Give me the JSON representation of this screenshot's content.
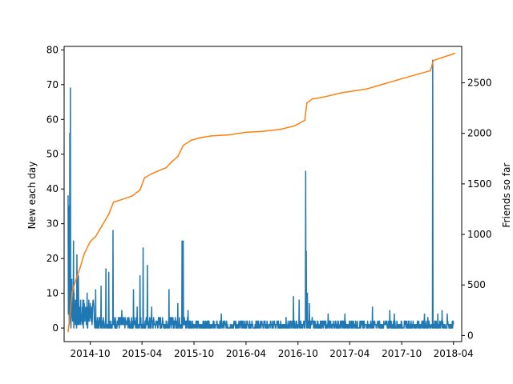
{
  "chart_data": {
    "type": "line",
    "title": "",
    "xlabel": "",
    "ylabel_left": "New each day",
    "ylabel_right": "Friends so far",
    "x_ticks": [
      "2014-10",
      "2015-04",
      "2015-10",
      "2016-04",
      "2016-10",
      "2017-04",
      "2017-10",
      "2018-04"
    ],
    "y_left_ticks": [
      "0",
      "10",
      "20",
      "30",
      "40",
      "50",
      "60",
      "70",
      "80"
    ],
    "y_right_ticks": [
      "0",
      "500",
      "1000",
      "1500",
      "2000",
      "2500"
    ],
    "x_range": [
      "2014-07-01",
      "2018-04-30"
    ],
    "ylim_left": [
      -3.9,
      81
    ],
    "ylim_right": [
      -60,
      2860
    ],
    "grid": false,
    "series": [
      {
        "axis": "left",
        "color": "#1f77b4",
        "style": "daily-spikes",
        "baseline_noise_max": 2.5,
        "points": [
          [
            "2014-07-15",
            38
          ],
          [
            "2014-07-18",
            35
          ],
          [
            "2014-07-21",
            56
          ],
          [
            "2014-07-23",
            69
          ],
          [
            "2014-07-26",
            12
          ],
          [
            "2014-07-28",
            14
          ],
          [
            "2014-08-03",
            25
          ],
          [
            "2014-08-05",
            10
          ],
          [
            "2014-08-10",
            8
          ],
          [
            "2014-08-15",
            21
          ],
          [
            "2014-08-20",
            15
          ],
          [
            "2014-09-05",
            8
          ],
          [
            "2014-09-20",
            10
          ],
          [
            "2014-10-20",
            11
          ],
          [
            "2014-11-08",
            12
          ],
          [
            "2014-11-25",
            17
          ],
          [
            "2014-12-05",
            16
          ],
          [
            "2014-12-20",
            28
          ],
          [
            "2015-01-20",
            5
          ],
          [
            "2015-03-02",
            11
          ],
          [
            "2015-03-15",
            6
          ],
          [
            "2015-03-25",
            15
          ],
          [
            "2015-04-05",
            23
          ],
          [
            "2015-04-20",
            18
          ],
          [
            "2015-05-05",
            6
          ],
          [
            "2015-07-05",
            11
          ],
          [
            "2015-08-05",
            7
          ],
          [
            "2015-08-20",
            25
          ],
          [
            "2015-08-24",
            25
          ],
          [
            "2015-09-10",
            5
          ],
          [
            "2015-11-20",
            2
          ],
          [
            "2016-01-05",
            4
          ],
          [
            "2016-08-20",
            3
          ],
          [
            "2016-09-15",
            9
          ],
          [
            "2016-10-05",
            8
          ],
          [
            "2016-10-28",
            45
          ],
          [
            "2016-10-30",
            22
          ],
          [
            "2016-11-03",
            10
          ],
          [
            "2016-11-10",
            7
          ],
          [
            "2016-11-20",
            3
          ],
          [
            "2017-01-15",
            4
          ],
          [
            "2017-03-15",
            4
          ],
          [
            "2017-06-20",
            6
          ],
          [
            "2017-08-20",
            5
          ],
          [
            "2017-09-05",
            4
          ],
          [
            "2017-12-20",
            4
          ],
          [
            "2018-01-01",
            3
          ],
          [
            "2018-01-18",
            77
          ],
          [
            "2018-02-05",
            4
          ],
          [
            "2018-02-20",
            5
          ],
          [
            "2018-03-10",
            4
          ]
        ]
      },
      {
        "axis": "right",
        "color": "#ff7f0e",
        "style": "cumulative",
        "points": [
          [
            "2014-07-15",
            40
          ],
          [
            "2014-07-22",
            200
          ],
          [
            "2014-07-29",
            430
          ],
          [
            "2014-08-10",
            540
          ],
          [
            "2014-08-25",
            660
          ],
          [
            "2014-09-10",
            810
          ],
          [
            "2014-10-01",
            930
          ],
          [
            "2014-10-20",
            980
          ],
          [
            "2014-11-10",
            1080
          ],
          [
            "2014-12-05",
            1200
          ],
          [
            "2014-12-22",
            1320
          ],
          [
            "2015-01-20",
            1345
          ],
          [
            "2015-02-25",
            1380
          ],
          [
            "2015-03-25",
            1440
          ],
          [
            "2015-04-10",
            1560
          ],
          [
            "2015-05-05",
            1600
          ],
          [
            "2015-05-25",
            1625
          ],
          [
            "2015-06-25",
            1660
          ],
          [
            "2015-07-15",
            1720
          ],
          [
            "2015-08-05",
            1770
          ],
          [
            "2015-08-24",
            1880
          ],
          [
            "2015-09-20",
            1930
          ],
          [
            "2015-10-20",
            1955
          ],
          [
            "2015-12-01",
            1975
          ],
          [
            "2016-02-01",
            1985
          ],
          [
            "2016-04-01",
            2010
          ],
          [
            "2016-06-01",
            2020
          ],
          [
            "2016-08-01",
            2040
          ],
          [
            "2016-09-20",
            2075
          ],
          [
            "2016-10-25",
            2130
          ],
          [
            "2016-11-01",
            2300
          ],
          [
            "2016-11-20",
            2340
          ],
          [
            "2017-01-01",
            2360
          ],
          [
            "2017-03-01",
            2400
          ],
          [
            "2017-06-01",
            2440
          ],
          [
            "2017-08-01",
            2490
          ],
          [
            "2017-10-01",
            2540
          ],
          [
            "2018-01-10",
            2620
          ],
          [
            "2018-01-20",
            2720
          ],
          [
            "2018-02-20",
            2750
          ],
          [
            "2018-04-05",
            2790
          ]
        ]
      }
    ]
  }
}
